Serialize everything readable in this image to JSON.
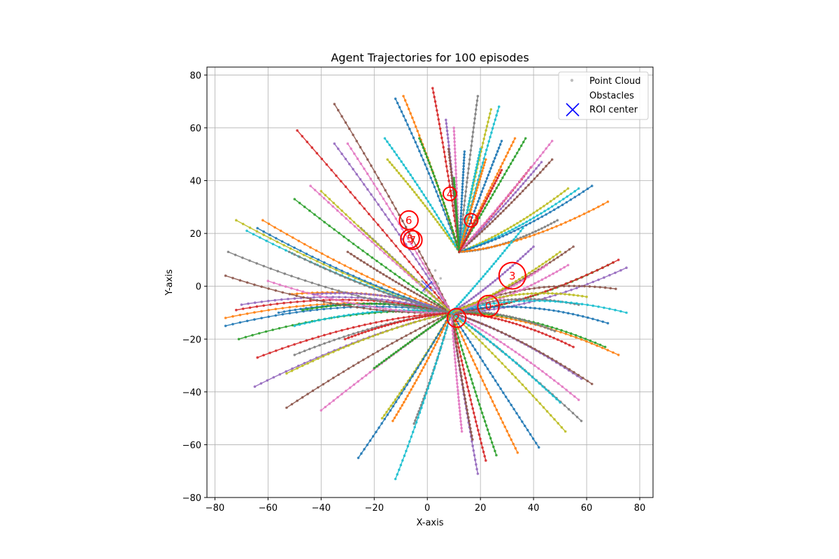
{
  "chart_data": {
    "type": "scatter",
    "title": "Agent Trajectories for 100 episodes",
    "xlabel": "X-axis",
    "ylabel": "Y-axis",
    "xlim": [
      -83,
      85
    ],
    "ylim": [
      -80,
      83
    ],
    "xticks": [
      -80,
      -60,
      -40,
      -20,
      0,
      20,
      40,
      60,
      80
    ],
    "yticks": [
      -80,
      -60,
      -40,
      -20,
      0,
      20,
      40,
      60,
      80
    ],
    "grid": true,
    "legend": {
      "placement": "top-right",
      "entries": [
        {
          "label": "Point Cloud",
          "marker": "dot",
          "color": "#bdbdbd"
        },
        {
          "label": "Obstacles",
          "marker": "none",
          "color": "#ff0000"
        },
        {
          "label": "ROI center",
          "marker": "x",
          "color": "#0000ff"
        }
      ]
    },
    "roi_center": [
      0,
      0
    ],
    "goal_points": [
      [
        9,
        -10
      ],
      [
        12,
        13
      ]
    ],
    "obstacles": [
      {
        "label": "0",
        "x": 23,
        "y": -7.5,
        "r": 4
      },
      {
        "label": "1",
        "x": 16.5,
        "y": 25,
        "r": 2.5
      },
      {
        "label": "2",
        "x": 11,
        "y": -12,
        "r": 3.5
      },
      {
        "label": "3",
        "x": 32,
        "y": 4,
        "r": 5
      },
      {
        "label": "4",
        "x": 8.5,
        "y": 35,
        "r": 2.5
      },
      {
        "label": "5",
        "x": -6.5,
        "y": 18,
        "r": 3.5
      },
      {
        "label": "6",
        "x": -7,
        "y": 25,
        "r": 3.5
      },
      {
        "label": "7",
        "x": -5.5,
        "y": 17.5,
        "r": 3.5
      }
    ],
    "palette": [
      "#1f77b4",
      "#ff7f0e",
      "#2ca02c",
      "#d62728",
      "#9467bd",
      "#8c564b",
      "#e377c2",
      "#7f7f7f",
      "#bcbd22",
      "#17becf"
    ],
    "starts": [
      [
        -76,
        -15
      ],
      [
        -76,
        -12
      ],
      [
        -71,
        -20
      ],
      [
        -64,
        -27
      ],
      [
        -65,
        -38
      ],
      [
        -53,
        -46
      ],
      [
        -40,
        -47
      ],
      [
        -50,
        -26
      ],
      [
        -53,
        -33
      ],
      [
        -50,
        -15
      ],
      [
        -56,
        -10
      ],
      [
        -51,
        -3
      ],
      [
        -47,
        -9
      ],
      [
        -72,
        -9
      ],
      [
        -70,
        -7
      ],
      [
        -76,
        4
      ],
      [
        -60,
        2
      ],
      [
        -75,
        13
      ],
      [
        -72,
        25
      ],
      [
        -68,
        21
      ],
      [
        -64,
        22
      ],
      [
        -62,
        25
      ],
      [
        -50,
        33
      ],
      [
        -49,
        59
      ],
      [
        -35,
        54
      ],
      [
        -35,
        69
      ],
      [
        -30,
        54
      ],
      [
        -25,
        22
      ],
      [
        -15,
        48
      ],
      [
        -16,
        56
      ],
      [
        -12,
        71
      ],
      [
        -9,
        72
      ],
      [
        -3,
        56
      ],
      [
        2,
        75
      ],
      [
        7,
        63
      ],
      [
        8,
        52
      ],
      [
        10,
        60
      ],
      [
        19,
        72
      ],
      [
        24,
        67
      ],
      [
        27,
        68
      ],
      [
        28,
        55
      ],
      [
        33,
        56
      ],
      [
        37,
        56
      ],
      [
        39,
        45
      ],
      [
        43,
        47
      ],
      [
        47,
        48
      ],
      [
        47,
        55
      ],
      [
        49,
        25
      ],
      [
        53,
        37
      ],
      [
        57,
        37
      ],
      [
        62,
        38
      ],
      [
        68,
        32
      ],
      [
        70,
        9
      ],
      [
        72,
        10
      ],
      [
        75,
        7
      ],
      [
        71,
        -1
      ],
      [
        53,
        8
      ],
      [
        57,
        -7
      ],
      [
        60,
        -4
      ],
      [
        75,
        -10
      ],
      [
        68,
        -14
      ],
      [
        72,
        -26
      ],
      [
        67,
        -23
      ],
      [
        55,
        -23
      ],
      [
        58,
        -35
      ],
      [
        62,
        -37
      ],
      [
        57,
        -43
      ],
      [
        58,
        -51
      ],
      [
        52,
        -55
      ],
      [
        50,
        -44
      ],
      [
        42,
        -61
      ],
      [
        34,
        -63
      ],
      [
        26,
        -64
      ],
      [
        22,
        -66
      ],
      [
        19,
        -71
      ],
      [
        17,
        -58
      ],
      [
        13,
        -55
      ],
      [
        -5,
        -52
      ],
      [
        -17,
        -50
      ],
      [
        -12,
        -73
      ],
      [
        -26,
        -65
      ],
      [
        -13,
        -51
      ],
      [
        -20,
        -31
      ],
      [
        -31,
        -20
      ],
      [
        -43,
        -3
      ],
      [
        -30,
        13
      ],
      [
        -44,
        38
      ],
      [
        -52,
        13
      ],
      [
        -40,
        36
      ],
      [
        20,
        52
      ],
      [
        14,
        51
      ],
      [
        22,
        48
      ],
      [
        10,
        41
      ],
      [
        28,
        44
      ],
      [
        40,
        15
      ],
      [
        55,
        15
      ],
      [
        45,
        8
      ],
      [
        48,
        -17
      ],
      [
        50,
        13
      ],
      [
        36,
        22
      ]
    ]
  }
}
